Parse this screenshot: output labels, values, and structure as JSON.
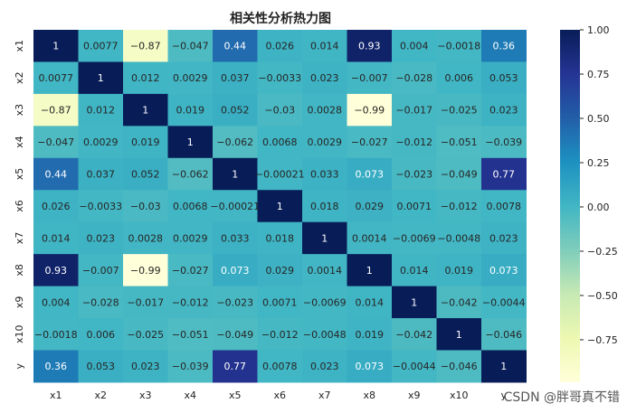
{
  "chart_data": {
    "type": "heatmap",
    "title": "相关性分析热力图",
    "xlabel": "",
    "ylabel": "",
    "labels": [
      "x1",
      "x2",
      "x3",
      "x4",
      "x5",
      "x6",
      "x7",
      "x8",
      "x9",
      "x10",
      "y"
    ],
    "annotations": [
      [
        "1",
        "0.0077",
        "−0.87",
        "−0.047",
        "0.44",
        "0.026",
        "0.014",
        "0.93",
        "0.004",
        "−0.0018",
        "0.36"
      ],
      [
        "0.0077",
        "1",
        "0.012",
        "0.0029",
        "0.037",
        "−0.0033",
        "0.023",
        "−0.007",
        "−0.028",
        "0.006",
        "0.053"
      ],
      [
        "−0.87",
        "0.012",
        "1",
        "0.019",
        "0.052",
        "−0.03",
        "0.0028",
        "−0.99",
        "−0.017",
        "−0.025",
        "0.023"
      ],
      [
        "−0.047",
        "0.0029",
        "0.019",
        "1",
        "−0.062",
        "0.0068",
        "0.0029",
        "−0.027",
        "−0.012",
        "−0.051",
        "−0.039"
      ],
      [
        "0.44",
        "0.037",
        "0.052",
        "−0.062",
        "1",
        "−0.00021",
        "0.033",
        "0.073",
        "−0.023",
        "−0.049",
        "0.77"
      ],
      [
        "0.026",
        "−0.0033",
        "−0.03",
        "0.0068",
        "−0.00021",
        "1",
        "0.018",
        "0.029",
        "0.0071",
        "−0.012",
        "0.0078"
      ],
      [
        "0.014",
        "0.023",
        "0.0028",
        "0.0029",
        "0.033",
        "0.018",
        "1",
        "0.0014",
        "−0.0069",
        "−0.0048",
        "0.023"
      ],
      [
        "0.93",
        "−0.007",
        "−0.99",
        "−0.027",
        "0.073",
        "0.029",
        "0.0014",
        "1",
        "0.014",
        "0.019",
        "0.073"
      ],
      [
        "0.004",
        "−0.028",
        "−0.017",
        "−0.012",
        "−0.023",
        "0.0071",
        "−0.0069",
        "0.014",
        "1",
        "−0.042",
        "−0.0044"
      ],
      [
        "−0.0018",
        "0.006",
        "−0.025",
        "−0.051",
        "−0.049",
        "−0.012",
        "−0.0048",
        "0.019",
        "−0.042",
        "1",
        "−0.046"
      ],
      [
        "0.36",
        "0.053",
        "0.023",
        "−0.039",
        "0.77",
        "0.0078",
        "0.023",
        "0.073",
        "−0.0044",
        "−0.046",
        "1"
      ]
    ],
    "values": [
      [
        1,
        0.0077,
        -0.87,
        -0.047,
        0.44,
        0.026,
        0.014,
        0.93,
        0.004,
        -0.0018,
        0.36
      ],
      [
        0.0077,
        1,
        0.012,
        0.0029,
        0.037,
        -0.0033,
        0.023,
        -0.007,
        -0.028,
        0.006,
        0.053
      ],
      [
        -0.87,
        0.012,
        1,
        0.019,
        0.052,
        -0.03,
        0.0028,
        -0.99,
        -0.017,
        -0.025,
        0.023
      ],
      [
        -0.047,
        0.0029,
        0.019,
        1,
        -0.062,
        0.0068,
        0.0029,
        -0.027,
        -0.012,
        -0.051,
        -0.039
      ],
      [
        0.44,
        0.037,
        0.052,
        -0.062,
        1,
        -0.00021,
        0.033,
        0.073,
        -0.023,
        -0.049,
        0.77
      ],
      [
        0.026,
        -0.0033,
        -0.03,
        0.0068,
        -0.00021,
        1,
        0.018,
        0.029,
        0.0071,
        -0.012,
        0.0078
      ],
      [
        0.014,
        0.023,
        0.0028,
        0.0029,
        0.033,
        0.018,
        1,
        0.0014,
        -0.0069,
        -0.0048,
        0.023
      ],
      [
        0.93,
        -0.007,
        -0.99,
        -0.027,
        0.073,
        0.029,
        0.0014,
        1,
        0.014,
        0.019,
        0.073
      ],
      [
        0.004,
        -0.028,
        -0.017,
        -0.012,
        -0.023,
        0.0071,
        -0.0069,
        0.014,
        1,
        -0.042,
        -0.0044
      ],
      [
        -0.0018,
        0.006,
        -0.025,
        -0.051,
        -0.049,
        -0.012,
        -0.0048,
        0.019,
        -0.042,
        1,
        -0.046
      ],
      [
        0.36,
        0.053,
        0.023,
        -0.039,
        0.77,
        0.0078,
        0.023,
        0.073,
        -0.0044,
        -0.046,
        1
      ]
    ],
    "colormap": "YlGnBu",
    "vmin": -0.99,
    "vmax": 1.0,
    "colorbar_ticks": [
      1.0,
      0.75,
      0.5,
      0.25,
      0.0,
      -0.25,
      -0.5,
      -0.75
    ],
    "colorbar_tick_labels": [
      "1.00",
      "0.75",
      "0.50",
      "0.25",
      "0.00",
      "−0.25",
      "−0.50",
      "−0.75"
    ]
  },
  "watermark": "CSDN @胖哥真不错"
}
